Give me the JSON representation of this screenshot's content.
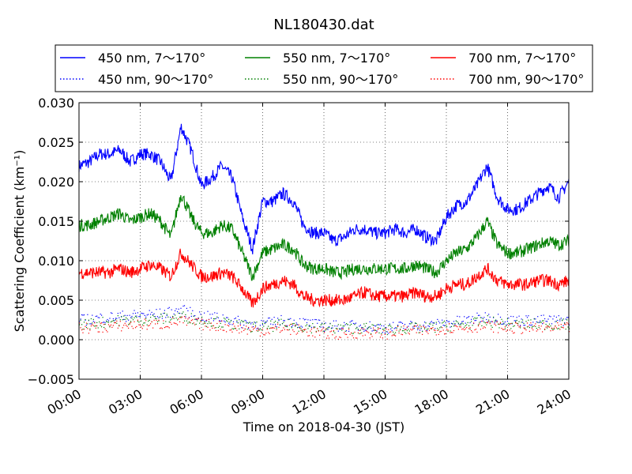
{
  "chart_data": {
    "type": "line",
    "title": "NL180430.dat",
    "xlabel": "Time on 2018-04-30 (JST)",
    "ylabel": "Scattering Coefficient (km⁻¹)",
    "x_unit": "hours",
    "xlim": [
      0,
      24
    ],
    "ylim": [
      -0.005,
      0.03
    ],
    "grid": true,
    "legend_position": "top, 3 columns",
    "x_ticks": [
      {
        "value": 0,
        "label": "00:00"
      },
      {
        "value": 3,
        "label": "03:00"
      },
      {
        "value": 6,
        "label": "06:00"
      },
      {
        "value": 9,
        "label": "09:00"
      },
      {
        "value": 12,
        "label": "12:00"
      },
      {
        "value": 15,
        "label": "15:00"
      },
      {
        "value": 18,
        "label": "18:00"
      },
      {
        "value": 21,
        "label": "21:00"
      },
      {
        "value": 24,
        "label": "24:00"
      }
    ],
    "y_ticks": [
      {
        "value": -0.005,
        "label": "−0.005"
      },
      {
        "value": 0,
        "label": "0.000"
      },
      {
        "value": 0.005,
        "label": "0.005"
      },
      {
        "value": 0.01,
        "label": "0.010"
      },
      {
        "value": 0.015,
        "label": "0.015"
      },
      {
        "value": 0.02,
        "label": "0.020"
      },
      {
        "value": 0.025,
        "label": "0.025"
      },
      {
        "value": 0.03,
        "label": "0.030"
      }
    ],
    "series": [
      {
        "name": "450 nm, 7～170°",
        "color": "#0000ff",
        "style": "solid",
        "x": [
          0,
          0.5,
          1,
          1.5,
          2,
          2.5,
          3,
          3.5,
          4,
          4.5,
          5,
          5.5,
          6,
          6.5,
          7,
          7.5,
          8,
          8.5,
          9,
          9.5,
          10,
          10.5,
          11,
          11.5,
          12,
          12.5,
          13,
          13.5,
          14,
          14.5,
          15,
          15.5,
          16,
          16.5,
          17,
          17.5,
          18,
          18.5,
          19,
          19.5,
          20,
          20.5,
          21,
          21.5,
          22,
          22.5,
          23,
          23.5,
          24
        ],
        "y": [
          0.022,
          0.0225,
          0.0235,
          0.0235,
          0.024,
          0.0225,
          0.0235,
          0.0235,
          0.0225,
          0.02,
          0.027,
          0.024,
          0.0195,
          0.0205,
          0.022,
          0.0205,
          0.0155,
          0.0115,
          0.0175,
          0.0175,
          0.0185,
          0.0175,
          0.0145,
          0.0135,
          0.0135,
          0.0125,
          0.013,
          0.014,
          0.014,
          0.0135,
          0.0135,
          0.014,
          0.0135,
          0.014,
          0.013,
          0.0125,
          0.0155,
          0.017,
          0.0175,
          0.0195,
          0.022,
          0.018,
          0.0165,
          0.0165,
          0.0175,
          0.0185,
          0.0195,
          0.018,
          0.02
        ]
      },
      {
        "name": "550 nm, 7～170°",
        "color": "#008000",
        "style": "solid",
        "x": [
          0,
          0.5,
          1,
          1.5,
          2,
          2.5,
          3,
          3.5,
          4,
          4.5,
          5,
          5.5,
          6,
          6.5,
          7,
          7.5,
          8,
          8.5,
          9,
          9.5,
          10,
          10.5,
          11,
          11.5,
          12,
          12.5,
          13,
          13.5,
          14,
          14.5,
          15,
          15.5,
          16,
          16.5,
          17,
          17.5,
          18,
          18.5,
          19,
          19.5,
          20,
          20.5,
          21,
          21.5,
          22,
          22.5,
          23,
          23.5,
          24
        ],
        "y": [
          0.0145,
          0.0145,
          0.015,
          0.0155,
          0.016,
          0.015,
          0.0155,
          0.016,
          0.015,
          0.013,
          0.0185,
          0.0155,
          0.0135,
          0.0135,
          0.0145,
          0.014,
          0.011,
          0.008,
          0.011,
          0.0115,
          0.012,
          0.0115,
          0.0095,
          0.009,
          0.009,
          0.0085,
          0.0085,
          0.009,
          0.009,
          0.009,
          0.009,
          0.009,
          0.009,
          0.0095,
          0.009,
          0.0085,
          0.01,
          0.011,
          0.0115,
          0.013,
          0.015,
          0.012,
          0.011,
          0.011,
          0.0115,
          0.012,
          0.0125,
          0.012,
          0.0125
        ]
      },
      {
        "name": "700 nm, 7～170°",
        "color": "#ff0000",
        "style": "solid",
        "x": [
          0,
          0.5,
          1,
          1.5,
          2,
          2.5,
          3,
          3.5,
          4,
          4.5,
          5,
          5.5,
          6,
          6.5,
          7,
          7.5,
          8,
          8.5,
          9,
          9.5,
          10,
          10.5,
          11,
          11.5,
          12,
          12.5,
          13,
          13.5,
          14,
          14.5,
          15,
          15.5,
          16,
          16.5,
          17,
          17.5,
          18,
          18.5,
          19,
          19.5,
          20,
          20.5,
          21,
          21.5,
          22,
          22.5,
          23,
          23.5,
          24
        ],
        "y": [
          0.0085,
          0.0085,
          0.0085,
          0.0085,
          0.009,
          0.0085,
          0.009,
          0.0095,
          0.009,
          0.008,
          0.011,
          0.0095,
          0.008,
          0.008,
          0.0085,
          0.008,
          0.0065,
          0.0045,
          0.0065,
          0.007,
          0.0075,
          0.007,
          0.0055,
          0.005,
          0.005,
          0.005,
          0.005,
          0.0055,
          0.006,
          0.0055,
          0.0055,
          0.0055,
          0.0055,
          0.006,
          0.0055,
          0.0055,
          0.0065,
          0.007,
          0.007,
          0.008,
          0.009,
          0.0075,
          0.007,
          0.007,
          0.007,
          0.0075,
          0.0075,
          0.007,
          0.0075
        ]
      },
      {
        "name": "450 nm, 90～170°",
        "color": "#0000ff",
        "style": "dotted",
        "x": [
          0,
          1,
          2,
          3,
          4,
          5,
          6,
          7,
          8,
          9,
          10,
          11,
          12,
          13,
          14,
          15,
          16,
          17,
          18,
          19,
          20,
          21,
          22,
          23,
          24
        ],
        "y": [
          0.0025,
          0.0028,
          0.003,
          0.0032,
          0.0033,
          0.0038,
          0.003,
          0.0028,
          0.0022,
          0.002,
          0.0025,
          0.0022,
          0.0018,
          0.0018,
          0.0018,
          0.0015,
          0.0018,
          0.0018,
          0.0022,
          0.0025,
          0.003,
          0.0025,
          0.0025,
          0.0025,
          0.0025
        ]
      },
      {
        "name": "550 nm, 90～170°",
        "color": "#008000",
        "style": "dotted",
        "x": [
          0,
          1,
          2,
          3,
          4,
          5,
          6,
          7,
          8,
          9,
          10,
          11,
          12,
          13,
          14,
          15,
          16,
          17,
          18,
          19,
          20,
          21,
          22,
          23,
          24
        ],
        "y": [
          0.002,
          0.0022,
          0.0025,
          0.0026,
          0.0027,
          0.003,
          0.0025,
          0.0022,
          0.0018,
          0.0016,
          0.002,
          0.0017,
          0.0015,
          0.0015,
          0.0015,
          0.0013,
          0.0015,
          0.0015,
          0.0018,
          0.002,
          0.0024,
          0.002,
          0.002,
          0.002,
          0.002
        ]
      },
      {
        "name": "700 nm, 90～170°",
        "color": "#ff0000",
        "style": "dotted",
        "x": [
          0,
          1,
          2,
          3,
          4,
          5,
          6,
          7,
          8,
          9,
          10,
          11,
          12,
          13,
          14,
          15,
          16,
          17,
          18,
          19,
          20,
          21,
          22,
          23,
          24
        ],
        "y": [
          0.0015,
          0.0016,
          0.0018,
          0.002,
          0.002,
          0.0024,
          0.002,
          0.0018,
          0.0014,
          0.0012,
          0.0015,
          0.0012,
          0.0008,
          0.0008,
          0.001,
          0.0008,
          0.0012,
          0.0012,
          0.0015,
          0.0016,
          0.0018,
          0.0015,
          0.0015,
          0.0015,
          0.0015
        ]
      }
    ]
  }
}
